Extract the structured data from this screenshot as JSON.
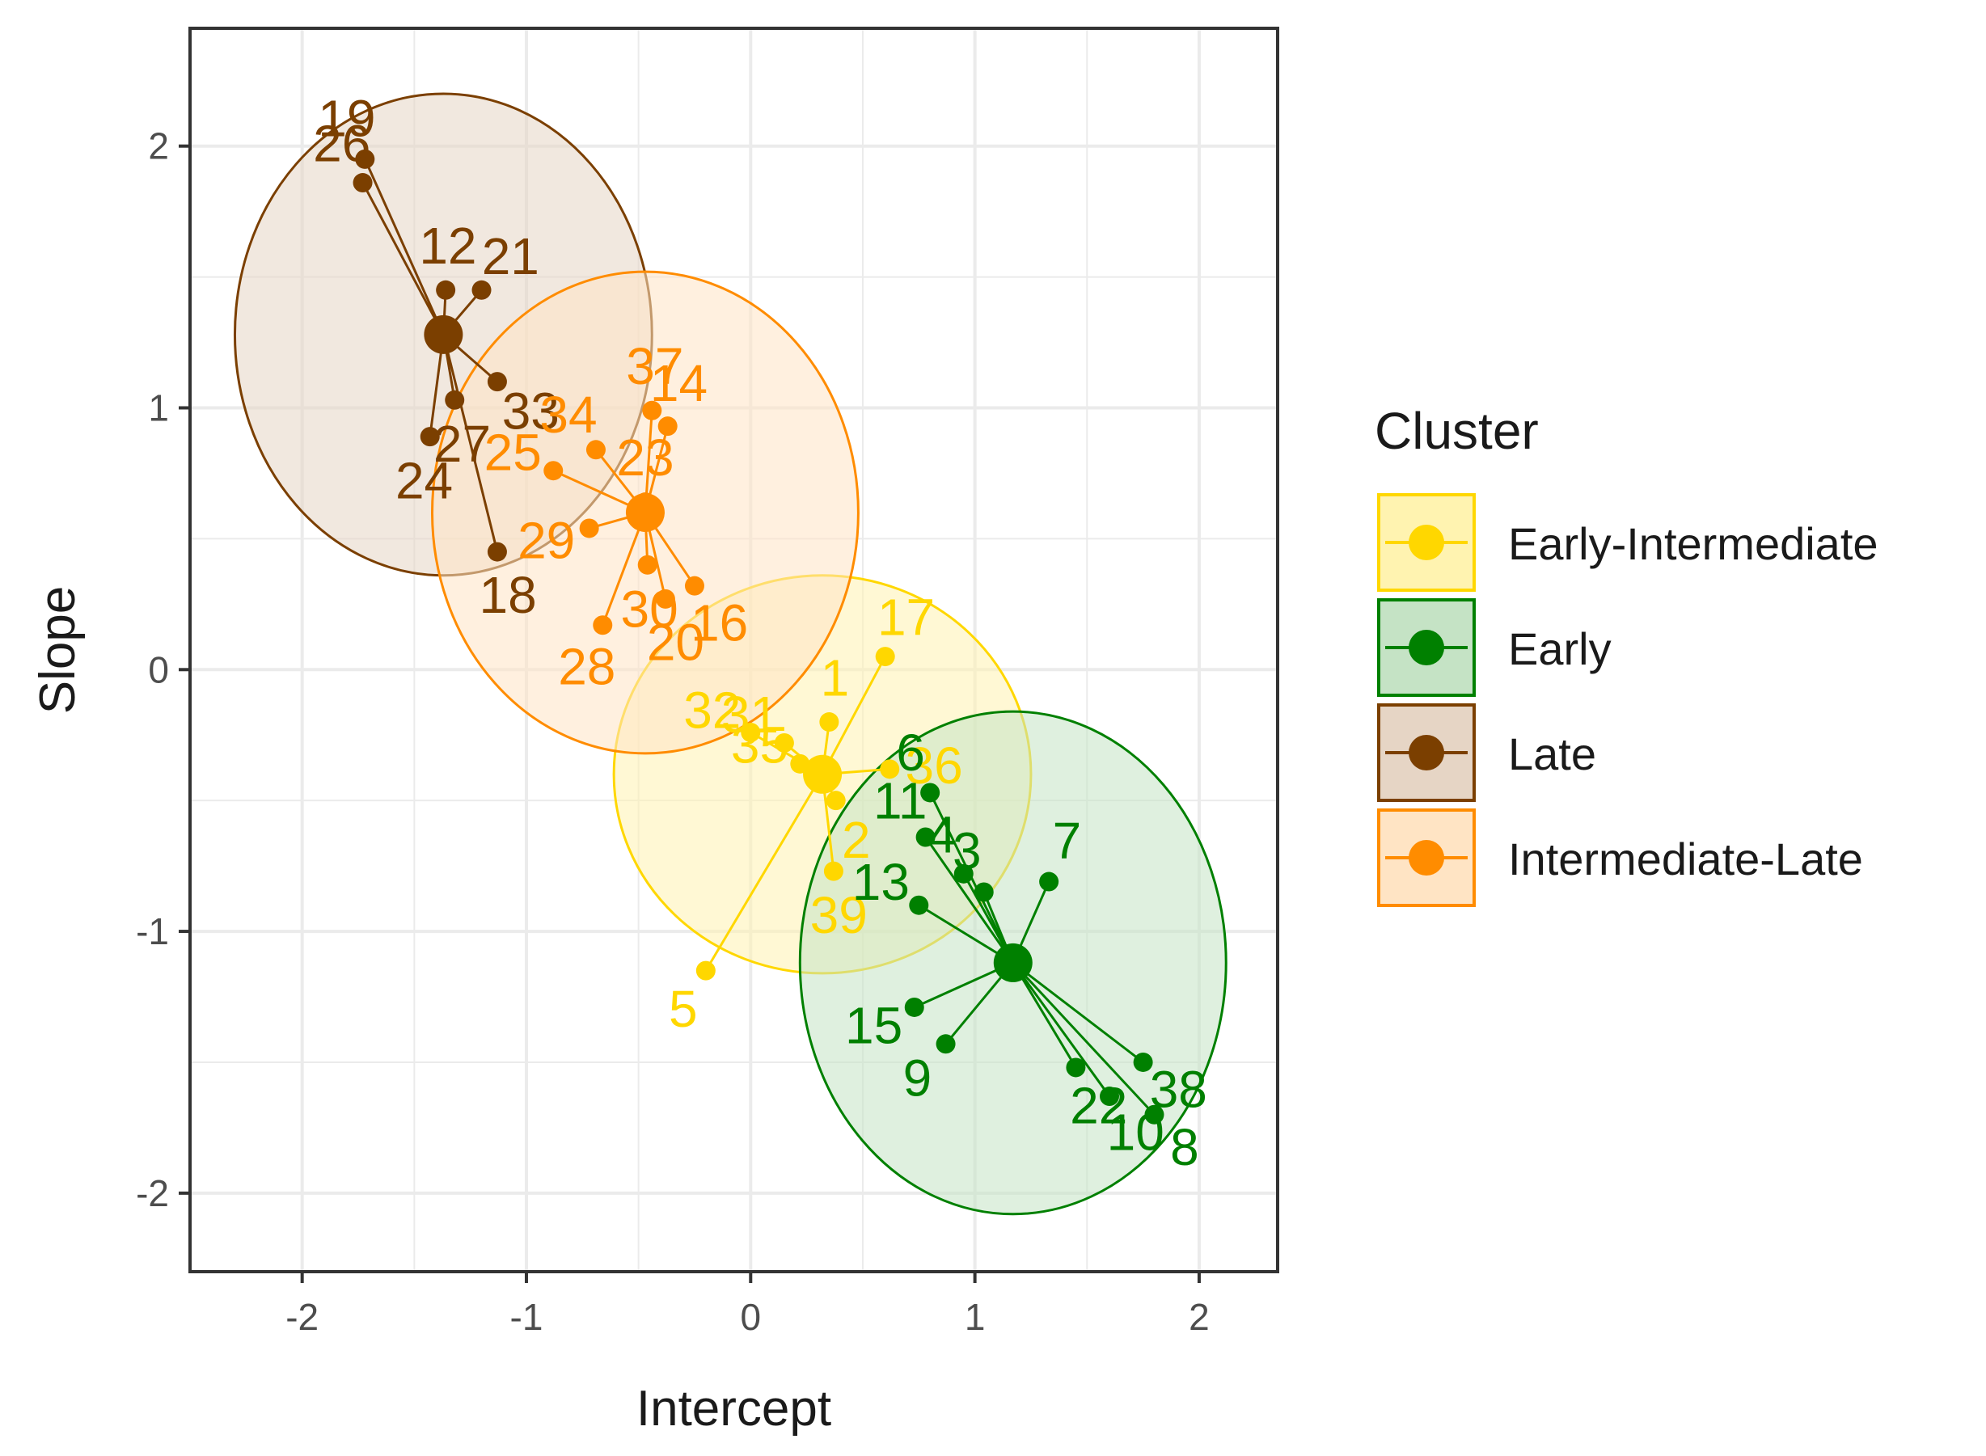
{
  "chart_data": {
    "type": "scatter",
    "title": "",
    "xlabel": "Intercept",
    "ylabel": "Slope",
    "xlim": [
      -2.5,
      2.35
    ],
    "ylim": [
      -2.3,
      2.45
    ],
    "x_ticks": [
      -2,
      -1,
      0,
      1,
      2
    ],
    "y_ticks": [
      -2,
      -1,
      0,
      1,
      2
    ],
    "x_tick_labels": [
      "-2",
      "-1",
      "0",
      "1",
      "2"
    ],
    "y_tick_labels": [
      "-2",
      "-1",
      "0",
      "1",
      "2"
    ],
    "grid": true,
    "legend": {
      "title": "Cluster",
      "position": "right"
    },
    "series": [
      {
        "name": "Early-Intermediate",
        "color": "#FFD700",
        "fill": "#FFF3B0",
        "centroid": [
          0.32,
          -0.4
        ],
        "ellipse": {
          "center": [
            0.32,
            -0.4
          ],
          "rx": 0.93,
          "ry": 0.76
        },
        "points": [
          {
            "label": "1",
            "x": 0.35,
            "y": -0.2
          },
          {
            "label": "2",
            "x": 0.38,
            "y": -0.5
          },
          {
            "label": "5",
            "x": -0.2,
            "y": -1.15
          },
          {
            "label": "17",
            "x": 0.6,
            "y": 0.05
          },
          {
            "label": "31",
            "x": 0.15,
            "y": -0.28
          },
          {
            "label": "32",
            "x": 0.0,
            "y": -0.24
          },
          {
            "label": "35",
            "x": 0.22,
            "y": -0.36
          },
          {
            "label": "36",
            "x": 0.62,
            "y": -0.38
          },
          {
            "label": "39",
            "x": 0.37,
            "y": -0.77
          }
        ]
      },
      {
        "name": "Early",
        "color": "#008000",
        "fill": "#C5E3C5",
        "centroid": [
          1.17,
          -1.12
        ],
        "ellipse": {
          "center": [
            1.17,
            -1.12
          ],
          "rx": 0.95,
          "ry": 0.96
        },
        "points": [
          {
            "label": "3",
            "x": 1.04,
            "y": -0.85
          },
          {
            "label": "4",
            "x": 0.95,
            "y": -0.78
          },
          {
            "label": "6",
            "x": 0.8,
            "y": -0.47
          },
          {
            "label": "7",
            "x": 1.33,
            "y": -0.81
          },
          {
            "label": "8",
            "x": 1.8,
            "y": -1.7
          },
          {
            "label": "9",
            "x": 0.87,
            "y": -1.43
          },
          {
            "label": "10",
            "x": 1.6,
            "y": -1.63
          },
          {
            "label": "11",
            "x": 0.78,
            "y": -0.64
          },
          {
            "label": "13",
            "x": 0.75,
            "y": -0.9
          },
          {
            "label": "15",
            "x": 0.73,
            "y": -1.29
          },
          {
            "label": "22",
            "x": 1.45,
            "y": -1.52
          },
          {
            "label": "38",
            "x": 1.75,
            "y": -1.5
          }
        ]
      },
      {
        "name": "Late",
        "color": "#7B3F00",
        "fill": "#E6D5C5",
        "centroid": [
          -1.37,
          1.28
        ],
        "ellipse": {
          "center": [
            -1.37,
            1.28
          ],
          "rx": 0.93,
          "ry": 0.92
        },
        "points": [
          {
            "label": "12",
            "x": -1.36,
            "y": 1.45
          },
          {
            "label": "18",
            "x": -1.13,
            "y": 0.45
          },
          {
            "label": "19",
            "x": -1.72,
            "y": 1.95
          },
          {
            "label": "21",
            "x": -1.2,
            "y": 1.45
          },
          {
            "label": "24",
            "x": -1.43,
            "y": 0.89
          },
          {
            "label": "26",
            "x": -1.73,
            "y": 1.86
          },
          {
            "label": "27",
            "x": -1.32,
            "y": 1.03
          },
          {
            "label": "33",
            "x": -1.13,
            "y": 1.1
          }
        ]
      },
      {
        "name": "Intermediate-Late",
        "color": "#FF8C00",
        "fill": "#FFE4C4",
        "centroid": [
          -0.47,
          0.6
        ],
        "ellipse": {
          "center": [
            -0.47,
            0.6
          ],
          "rx": 0.95,
          "ry": 0.92
        },
        "points": [
          {
            "label": "14",
            "x": -0.37,
            "y": 0.93
          },
          {
            "label": "16",
            "x": -0.25,
            "y": 0.32
          },
          {
            "label": "20",
            "x": -0.38,
            "y": 0.27
          },
          {
            "label": "23",
            "x": -0.47,
            "y": 0.64
          },
          {
            "label": "25",
            "x": -0.88,
            "y": 0.76
          },
          {
            "label": "28",
            "x": -0.66,
            "y": 0.17
          },
          {
            "label": "29",
            "x": -0.72,
            "y": 0.54
          },
          {
            "label": "30",
            "x": -0.46,
            "y": 0.4
          },
          {
            "label": "34",
            "x": -0.69,
            "y": 0.84
          },
          {
            "label": "37",
            "x": -0.44,
            "y": 0.99
          }
        ]
      }
    ]
  }
}
